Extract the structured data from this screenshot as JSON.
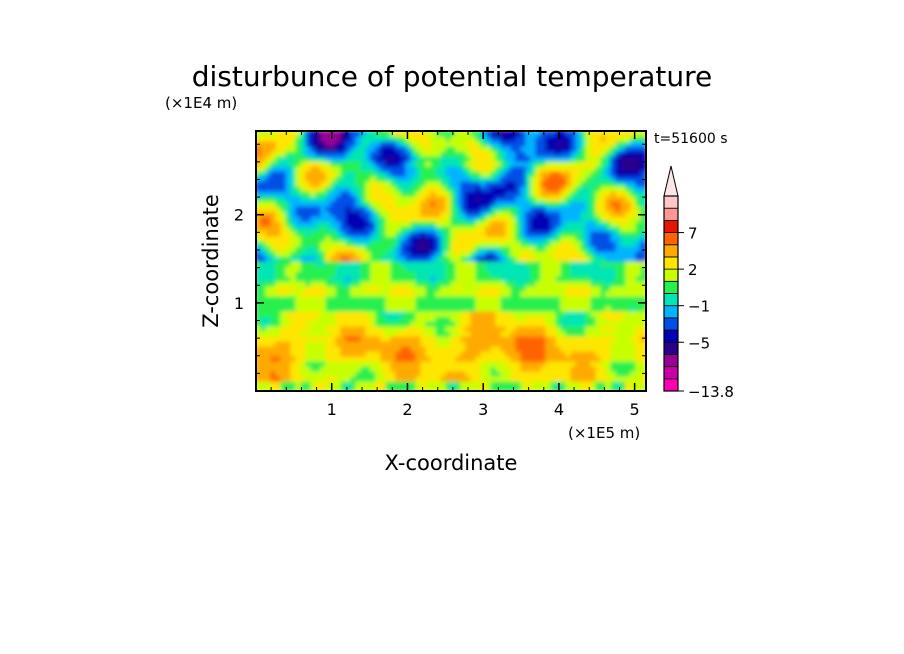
{
  "chart_data": {
    "type": "heatmap",
    "title": "disturbunce of potential temperature",
    "time_label": "t=51600 s",
    "xlabel": "X-coordinate",
    "ylabel": "Z-coordinate",
    "x_unit": "(×1E5 m)",
    "y_unit": "(×1E4 m)",
    "xlim": [
      0,
      5.15
    ],
    "ylim": [
      0,
      2.95
    ],
    "x_ticks": [
      1,
      2,
      3,
      4,
      5
    ],
    "x_tick_labels": [
      "1",
      "2",
      "3",
      "4",
      "5"
    ],
    "y_ticks": [
      1,
      2
    ],
    "y_tick_labels": [
      "1",
      "2"
    ],
    "colorbar": {
      "min_label": "−13.8",
      "labels": [
        {
          "value": 7,
          "text": "7"
        },
        {
          "value": 2,
          "text": "2"
        },
        {
          "value": -1,
          "text": "−1"
        },
        {
          "value": -5,
          "text": "−5"
        }
      ],
      "levels": [
        -13.8,
        -11,
        -9,
        -7,
        -5,
        -3.5,
        -2,
        -1,
        0,
        1,
        2,
        3.5,
        5,
        7,
        9,
        12
      ],
      "colors": [
        "#ff00b4",
        "#c800aa",
        "#960096",
        "#28008c",
        "#0000b4",
        "#0050e6",
        "#00b4ff",
        "#00e6b4",
        "#28f050",
        "#c8ff00",
        "#ffe600",
        "#ffaa00",
        "#ff6400",
        "#e61400",
        "#ff9696",
        "#ffc8c8"
      ],
      "top_arrow_color": "#ffe6e6"
    },
    "regions": [
      {
        "z": [
          0.0,
          0.1
        ],
        "range": "0 to 2"
      },
      {
        "z": [
          0.1,
          0.9
        ],
        "range": "1 to 5"
      },
      {
        "z": [
          0.9,
          1.5
        ],
        "range": "0 to 2"
      },
      {
        "z": [
          1.5,
          2.95
        ],
        "range": "-5 to 7"
      }
    ]
  }
}
